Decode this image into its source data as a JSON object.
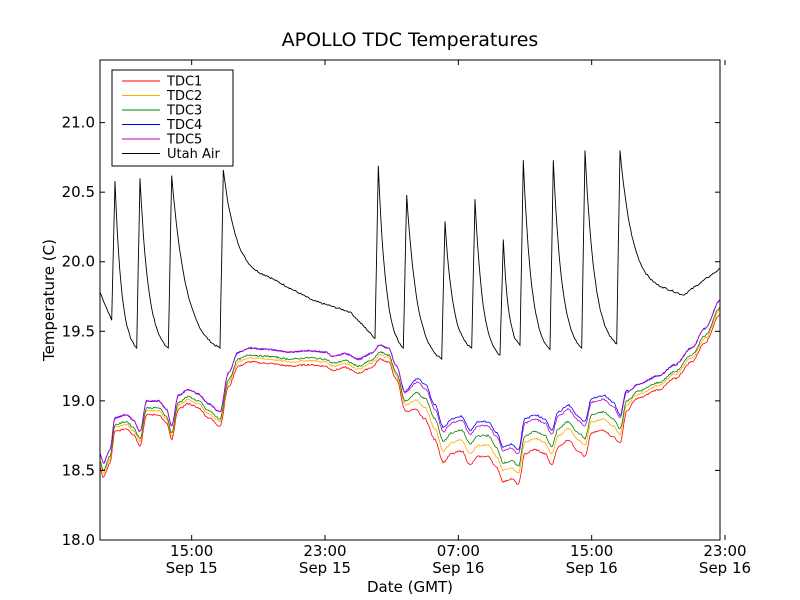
{
  "chart_data": {
    "type": "line",
    "title": "APOLLO TDC Temperatures",
    "xlabel": "Date (GMT)",
    "ylabel": "Temperature (C)",
    "xlim": [
      9.5,
      46.7
    ],
    "ylim": [
      18.0,
      21.45
    ],
    "x_unit": "hours since Sep 15 00:00 GMT",
    "grid": false,
    "legend_position": "top-left",
    "yticks": [
      {
        "value": 18.0,
        "label": "18.0"
      },
      {
        "value": 18.5,
        "label": "18.5"
      },
      {
        "value": 19.0,
        "label": "19.0"
      },
      {
        "value": 19.5,
        "label": "19.5"
      },
      {
        "value": 20.0,
        "label": "20.0"
      },
      {
        "value": 20.5,
        "label": "20.5"
      },
      {
        "value": 21.0,
        "label": "21.0"
      }
    ],
    "xticks": [
      {
        "value": 15,
        "time": "15:00",
        "date": "Sep 15"
      },
      {
        "value": 23,
        "time": "23:00",
        "date": "Sep 15"
      },
      {
        "value": 31,
        "time": "07:00",
        "date": "Sep 16"
      },
      {
        "value": 39,
        "time": "15:00",
        "date": "Sep 16"
      },
      {
        "value": 47,
        "time": "23:00",
        "date": "Sep 16"
      }
    ],
    "air": {
      "name": "Utah Air",
      "color": "#000000",
      "start": [
        9.5,
        19.78
      ],
      "peaks": [
        {
          "pre_t": 10.2,
          "pre_v": 19.58,
          "t": 10.4,
          "v": 20.58
        },
        {
          "pre_t": 11.7,
          "pre_v": 19.38,
          "t": 11.9,
          "v": 20.6
        },
        {
          "pre_t": 13.6,
          "pre_v": 19.38,
          "t": 13.8,
          "v": 20.62
        },
        {
          "pre_t": 16.7,
          "pre_v": 19.38,
          "t": 16.9,
          "v": 20.66
        },
        {
          "pre_t": 26.0,
          "pre_v": 19.45,
          "t": 26.2,
          "v": 20.69
        },
        {
          "pre_t": 27.7,
          "pre_v": 19.38,
          "t": 27.9,
          "v": 20.48
        },
        {
          "pre_t": 30.0,
          "pre_v": 19.3,
          "t": 30.2,
          "v": 20.29
        },
        {
          "pre_t": 31.8,
          "pre_v": 19.38,
          "t": 32.0,
          "v": 20.45
        },
        {
          "pre_t": 33.5,
          "pre_v": 19.33,
          "t": 33.7,
          "v": 20.16
        },
        {
          "pre_t": 34.7,
          "pre_v": 19.4,
          "t": 34.9,
          "v": 20.73
        },
        {
          "pre_t": 36.5,
          "pre_v": 19.37,
          "t": 36.7,
          "v": 20.73
        },
        {
          "pre_t": 38.4,
          "pre_v": 19.38,
          "t": 38.6,
          "v": 20.8
        },
        {
          "pre_t": 40.5,
          "pre_v": 19.41,
          "t": 40.7,
          "v": 20.8
        }
      ],
      "bridges": [
        {
          "t": 19.5,
          "v": 19.9
        },
        {
          "t": 22.3,
          "v": 19.72
        },
        {
          "t": 24.5,
          "v": 19.64
        },
        {
          "t": 43.2,
          "v": 19.82
        },
        {
          "t": 44.5,
          "v": 19.76
        }
      ],
      "end": [
        46.7,
        19.95
      ]
    },
    "tdc": {
      "base": [
        [
          9.5,
          18.52
        ],
        [
          9.7,
          18.45
        ],
        [
          10.1,
          18.55
        ],
        [
          10.4,
          18.78
        ],
        [
          11.1,
          18.8
        ],
        [
          11.5,
          18.76
        ],
        [
          11.9,
          18.68
        ],
        [
          12.3,
          18.9
        ],
        [
          13.0,
          18.9
        ],
        [
          13.5,
          18.84
        ],
        [
          13.8,
          18.72
        ],
        [
          14.2,
          18.94
        ],
        [
          14.8,
          18.98
        ],
        [
          15.4,
          18.95
        ],
        [
          16.0,
          18.88
        ],
        [
          16.7,
          18.82
        ],
        [
          17.2,
          19.1
        ],
        [
          17.8,
          19.25
        ],
        [
          18.5,
          19.28
        ],
        [
          19.5,
          19.27
        ],
        [
          21.0,
          19.25
        ],
        [
          22.0,
          19.26
        ],
        [
          23.0,
          19.25
        ],
        [
          23.5,
          19.22
        ],
        [
          24.2,
          19.24
        ],
        [
          25.0,
          19.2
        ],
        [
          25.8,
          19.24
        ],
        [
          26.3,
          19.3
        ],
        [
          26.8,
          19.28
        ],
        [
          27.3,
          19.15
        ],
        [
          27.8,
          18.95
        ],
        [
          28.5,
          19.0
        ],
        [
          29.0,
          18.95
        ],
        [
          29.6,
          18.8
        ],
        [
          30.1,
          18.64
        ],
        [
          30.6,
          18.7
        ],
        [
          31.2,
          18.72
        ],
        [
          31.7,
          18.62
        ],
        [
          32.2,
          18.68
        ],
        [
          32.8,
          18.68
        ],
        [
          33.3,
          18.6
        ],
        [
          33.7,
          18.5
        ],
        [
          34.2,
          18.52
        ],
        [
          34.6,
          18.48
        ],
        [
          35.0,
          18.7
        ],
        [
          35.6,
          18.73
        ],
        [
          36.2,
          18.7
        ],
        [
          36.6,
          18.62
        ],
        [
          37.0,
          18.75
        ],
        [
          37.6,
          18.8
        ],
        [
          38.2,
          18.72
        ],
        [
          38.6,
          18.68
        ],
        [
          39.0,
          18.85
        ],
        [
          39.7,
          18.87
        ],
        [
          40.3,
          18.82
        ],
        [
          40.7,
          18.75
        ],
        [
          41.1,
          18.95
        ],
        [
          41.8,
          19.02
        ],
        [
          43.0,
          19.08
        ],
        [
          44.0,
          19.16
        ],
        [
          45.0,
          19.28
        ],
        [
          45.8,
          19.42
        ],
        [
          46.7,
          19.62
        ]
      ],
      "series": [
        {
          "name": "TDC1",
          "color": "#ff0000",
          "offset": 0.0,
          "extra": [
            {
              "from": 27.5,
              "to": 41.5,
              "dv": -0.08
            }
          ]
        },
        {
          "name": "TDC2",
          "color": "#ffaa00",
          "offset": 0.03,
          "extra": [
            {
              "from": 27.5,
              "to": 41.5,
              "dv": -0.03
            }
          ]
        },
        {
          "name": "TDC3",
          "color": "#008000",
          "offset": 0.05,
          "extra": [
            {
              "from": 28.0,
              "to": 34.0,
              "dv": 0.02
            }
          ]
        },
        {
          "name": "TDC4",
          "color": "#0000ff",
          "offset": 0.1,
          "extra": [
            {
              "from": 27.5,
              "to": 41.5,
              "dv": 0.07
            }
          ]
        },
        {
          "name": "TDC5",
          "color": "#bf00bf",
          "offset": 0.1,
          "extra": [
            {
              "from": 27.5,
              "to": 41.5,
              "dv": 0.04
            }
          ]
        }
      ]
    },
    "legend": [
      {
        "label": "TDC1",
        "color": "#ff0000"
      },
      {
        "label": "TDC2",
        "color": "#ffaa00"
      },
      {
        "label": "TDC3",
        "color": "#008000"
      },
      {
        "label": "TDC4",
        "color": "#0000ff"
      },
      {
        "label": "TDC5",
        "color": "#bf00bf"
      },
      {
        "label": "Utah Air",
        "color": "#000000"
      }
    ]
  }
}
